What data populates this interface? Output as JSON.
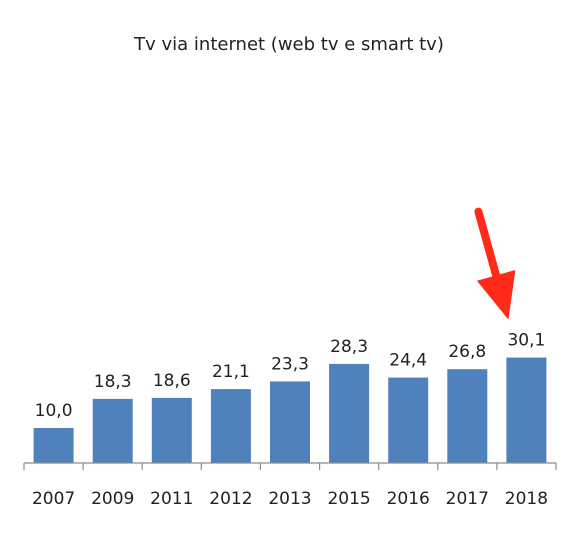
{
  "chart_data": {
    "type": "bar",
    "title": "Tv via internet (web tv e smart tv)",
    "categories": [
      "2007",
      "2009",
      "2011",
      "2012",
      "2013",
      "2015",
      "2016",
      "2017",
      "2018"
    ],
    "values": [
      10.0,
      18.3,
      18.6,
      21.1,
      23.3,
      28.3,
      24.4,
      26.8,
      30.1
    ],
    "value_labels": [
      "10,0",
      "18,3",
      "18,6",
      "21,1",
      "23,3",
      "28,3",
      "24,4",
      "26,8",
      "30,1"
    ],
    "xlabel": "",
    "ylabel": "",
    "grid": false,
    "legend": "none",
    "bar_color": "#4f81bd",
    "highlight_arrow": {
      "target_category": "2018",
      "color": "#ff2a1a"
    }
  }
}
